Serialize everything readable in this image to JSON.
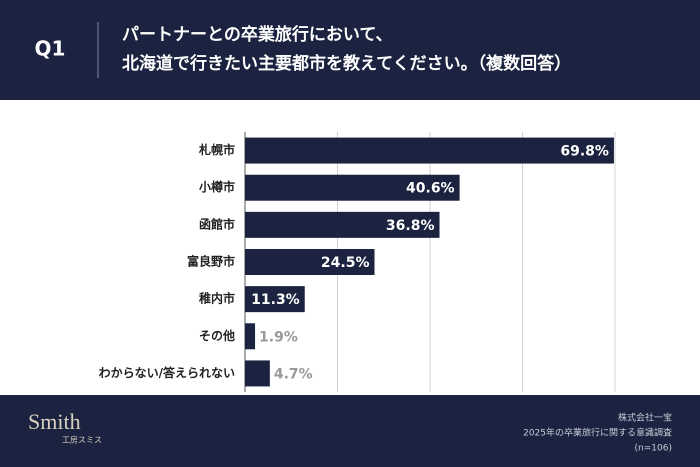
{
  "header": {
    "label": "Q1",
    "title_lines": [
      "パートナーとの卒業旅行において、",
      "北海道で行きたい主要都市を教えてください。（複数回答）"
    ]
  },
  "chart_data": {
    "type": "barh",
    "categories": [
      "札幌市",
      "小樽市",
      "函館市",
      "富良野市",
      "稚内市",
      "その他",
      "わからない/答えられない"
    ],
    "values": [
      69.8,
      40.6,
      36.8,
      24.5,
      11.3,
      1.9,
      4.7
    ],
    "value_labels": [
      "69.8%",
      "40.6%",
      "36.8%",
      "24.5%",
      "11.3%",
      "1.9%",
      "4.7%"
    ],
    "color": "#1c2340",
    "xlim": [
      0,
      70
    ],
    "xticks": [
      0,
      17.5,
      35,
      52.5,
      70
    ],
    "grid": true
  },
  "footer": {
    "logo": "Smith",
    "logo_sub": "工房スミス",
    "source_lines": [
      "株式会社一宝",
      "2025年の卒業旅行に関する意識調査",
      "(n=106)"
    ]
  }
}
